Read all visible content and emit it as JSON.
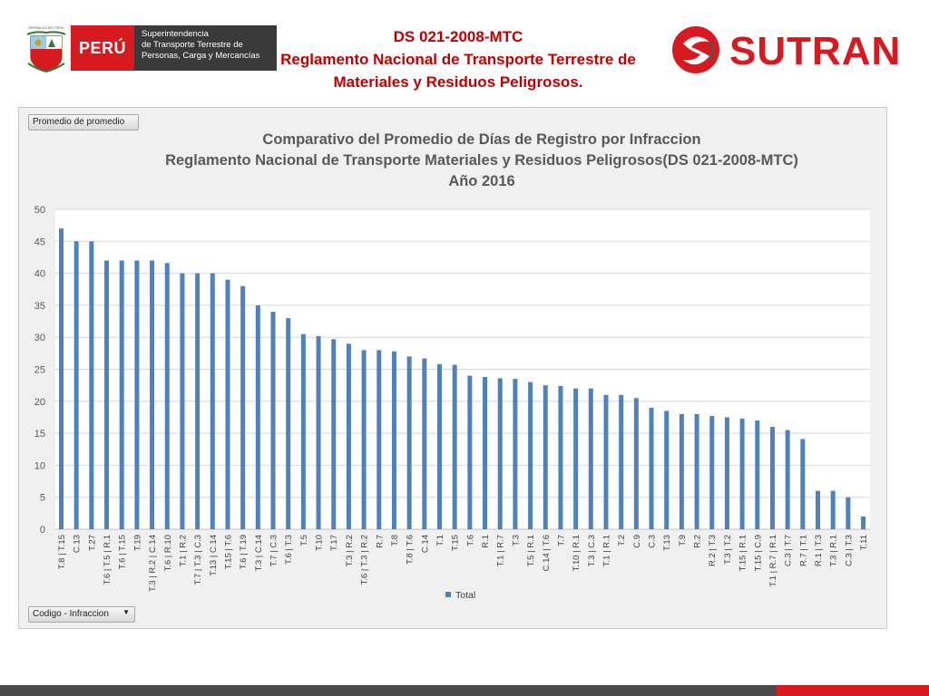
{
  "header": {
    "logo_country_top": "REPÚBLICA DEL PERÚ",
    "logo_peru": "PERÚ",
    "logo_entity_lines": [
      "Superintendencia",
      "de Transporte Terrestre de",
      "Personas, Carga y Mercancías"
    ],
    "title_lines": [
      "DS 021-2008-MTC",
      "Reglamento Nacional de Transporte Terrestre de",
      "Materiales y Residuos Peligrosos."
    ],
    "brand": "SUTRAN"
  },
  "pivot": {
    "value_field": "Promedio de promedio",
    "axis_field": "Codigo - Infraccion"
  },
  "colors": {
    "bar": "#4f81bd",
    "title_red": "#c00000",
    "brand_red": "#d71920"
  },
  "chart_data": {
    "type": "bar",
    "title_lines": [
      "Comparativo del Promedio de Días de Registro por Infraccion",
      "Reglamento Nacional de Transporte Materiales y Residuos Peligrosos(DS 021-2008-MTC)",
      "Año 2016"
    ],
    "xlabel": "",
    "ylabel": "",
    "ylim": [
      0,
      50
    ],
    "yticks": [
      0,
      5,
      10,
      15,
      20,
      25,
      30,
      35,
      40,
      45,
      50
    ],
    "grid": true,
    "legend": "bottom-center",
    "series": [
      {
        "name": "Total",
        "values": [
          47,
          45,
          45,
          42,
          42,
          42,
          42,
          41.6,
          40,
          40,
          40,
          39,
          38,
          35,
          34,
          33,
          30.5,
          30.2,
          29.7,
          29,
          28,
          28,
          27.8,
          27,
          26.7,
          25.8,
          25.7,
          24,
          23.8,
          23.6,
          23.5,
          23,
          22.5,
          22.4,
          22,
          22,
          21,
          21,
          20.5,
          19,
          18.5,
          18,
          18,
          17.7,
          17.5,
          17.3,
          17,
          16,
          15.5,
          14.1,
          6,
          6,
          5,
          2
        ]
      }
    ],
    "categories": [
      "T.8 | T.15",
      "C.13",
      "T.27",
      "T.6 | T.5 | R.1",
      "T.6 | T.15",
      "T.19",
      "T.3 | R.2 | C.14",
      "T.6 | R.10",
      "T.1 | R.2",
      "T.7 | T.3 | C.3",
      "T.13 | C.14",
      "T.15 | T.6",
      "T.6 | T.19",
      "T.3 | C.14",
      "T.7 | C.3",
      "T.6 | T.3",
      "T.5",
      "T.10",
      "T.17",
      "T.3 | R.2",
      "T.6 | T.3 | R.2",
      "R.7",
      "T.8",
      "T.8 | T.6",
      "C.14",
      "T.1",
      "T.15",
      "T.6",
      "R.1",
      "T.1 | R.7",
      "T.3",
      "T.5 | R.1",
      "C.14 | T.6",
      "T.7",
      "T.10 | R.1",
      "T.3 | C.3",
      "T.1 | R.1",
      "T.2",
      "C.9",
      "C.3",
      "T.13",
      "T.9",
      "R.2",
      "R.2 | T.3",
      "T.3 | T.2",
      "T.15 | R.1",
      "T.15 | C.9",
      "T.1 | R.7 | R.1",
      "C.3 | T.7",
      "R.7 | T.1",
      "R.1 | T.3",
      "T.3 | R.1",
      "C.3 | T.3",
      "T.11"
    ]
  }
}
